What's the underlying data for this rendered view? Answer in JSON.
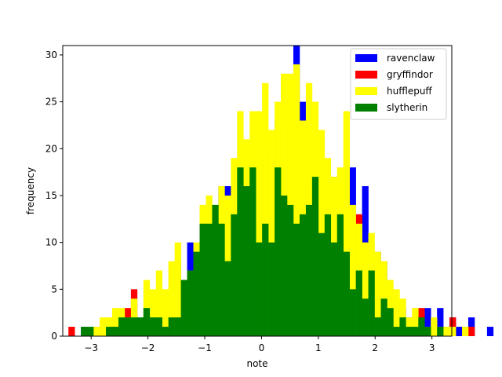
{
  "chart_data": {
    "type": "histogram",
    "xlabel": "note",
    "ylabel": "frequency",
    "xlim": [
      -3.5,
      3.35
    ],
    "ylim": [
      0,
      31
    ],
    "xticks": [
      -3,
      -2,
      -1,
      0,
      1,
      2,
      3
    ],
    "yticks": [
      0,
      5,
      10,
      15,
      20,
      25,
      30
    ],
    "bin_start": -3.4,
    "bin_width": 0.11,
    "legend_position": "top-right",
    "series": [
      {
        "name": "ravenclaw",
        "color": "#0000ff",
        "values": [
          0,
          0,
          1,
          0,
          1,
          0,
          0,
          0,
          0,
          0,
          1,
          2,
          0,
          4,
          0,
          3,
          3,
          8,
          1,
          10,
          9,
          13,
          14,
          13,
          16,
          16,
          14,
          12,
          16,
          16,
          20,
          17,
          20,
          23,
          23,
          20,
          31,
          25,
          25,
          21,
          17,
          11,
          17,
          10,
          13,
          18,
          12,
          16,
          7,
          9,
          8,
          4,
          3,
          3,
          2,
          1,
          1,
          3,
          1,
          3,
          1,
          2,
          1,
          1,
          2,
          0,
          0,
          1,
          0,
          0,
          2
        ]
      },
      {
        "name": "gryffindor",
        "color": "#ff0000",
        "values": [
          1,
          0,
          0,
          0,
          1,
          1,
          0,
          0,
          1,
          3,
          5,
          0,
          0,
          0,
          0,
          0,
          0,
          3,
          5,
          5,
          5,
          8,
          11,
          12,
          11,
          11,
          15,
          10,
          10,
          14,
          13,
          14,
          14,
          13,
          15,
          17,
          16,
          15,
          19,
          12,
          11,
          13,
          11,
          10,
          10,
          12,
          13,
          5,
          3,
          8,
          6,
          4,
          1,
          2,
          1,
          2,
          3,
          0,
          1,
          1,
          0,
          2,
          0,
          0,
          1,
          0,
          0,
          0,
          0,
          0,
          0
        ]
      },
      {
        "name": "hufflepuff",
        "color": "#ffff00",
        "values": [
          0,
          0,
          0,
          0,
          1,
          2,
          2,
          3,
          3,
          2,
          4,
          2,
          6,
          5,
          7,
          5,
          8,
          10,
          6,
          7,
          10,
          14,
          15,
          14,
          16,
          15,
          19,
          24,
          21,
          24,
          24,
          27,
          22,
          25,
          28,
          28,
          29,
          23,
          27,
          25,
          22,
          19,
          17,
          18,
          24,
          14,
          12,
          10,
          11,
          9,
          8,
          6,
          5,
          4,
          2,
          3,
          1,
          1,
          2,
          1,
          1,
          1,
          0,
          1,
          0,
          0,
          0,
          0,
          0,
          0,
          0
        ]
      },
      {
        "name": "slytherin",
        "color": "#008000",
        "values": [
          0,
          0,
          1,
          1,
          0,
          0,
          1,
          1,
          2,
          2,
          2,
          2,
          3,
          2,
          2,
          1,
          2,
          2,
          6,
          7,
          9,
          12,
          12,
          14,
          12,
          8,
          13,
          18,
          16,
          18,
          10,
          12,
          10,
          18,
          15,
          14,
          12,
          13,
          14,
          17,
          11,
          13,
          10,
          13,
          9,
          5,
          7,
          4,
          7,
          2,
          4,
          3,
          1,
          2,
          1,
          1,
          2,
          1,
          0,
          1,
          0,
          0,
          0,
          0,
          0,
          0,
          0,
          0,
          0,
          0,
          0
        ]
      }
    ]
  }
}
